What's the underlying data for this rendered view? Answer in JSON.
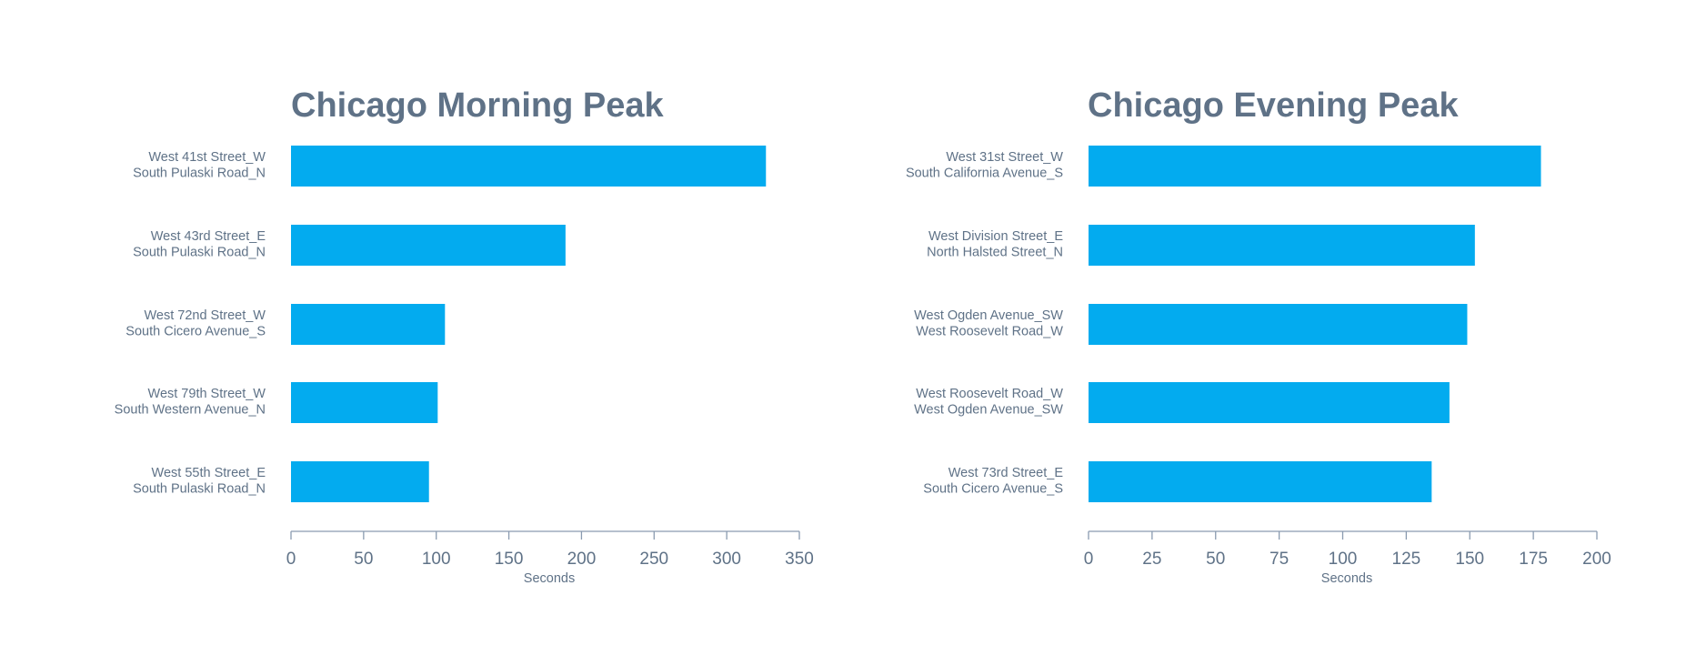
{
  "chart_data": [
    {
      "type": "bar",
      "orientation": "horizontal",
      "title": "Chicago Morning Peak",
      "xlabel": "Seconds",
      "xlim": [
        0,
        350
      ],
      "xticks": [
        0,
        50,
        100,
        150,
        200,
        250,
        300,
        350
      ],
      "bar_color": "#03abef",
      "categories": [
        [
          "West 41st Street_W",
          "South Pulaski Road_N"
        ],
        [
          "West 43rd Street_E",
          "South Pulaski Road_N"
        ],
        [
          "West 72nd Street_W",
          "South Cicero Avenue_S"
        ],
        [
          "West 79th Street_W",
          "South Western Avenue_N"
        ],
        [
          "West 55th Street_E",
          "South Pulaski Road_N"
        ]
      ],
      "values": [
        327,
        189,
        106,
        101,
        95
      ]
    },
    {
      "type": "bar",
      "orientation": "horizontal",
      "title": "Chicago Evening Peak",
      "xlabel": "Seconds",
      "xlim": [
        0,
        200
      ],
      "xticks": [
        0,
        25,
        50,
        75,
        100,
        125,
        150,
        175,
        200
      ],
      "bar_color": "#03abef",
      "categories": [
        [
          "West 31st Street_W",
          "South California Avenue_S"
        ],
        [
          "West Division Street_E",
          "North Halsted Street_N"
        ],
        [
          "West Ogden Avenue_SW",
          "West Roosevelt Road_W"
        ],
        [
          "West Roosevelt Road_W",
          "West Ogden Avenue_SW"
        ],
        [
          "West 73rd Street_E",
          "South Cicero Avenue_S"
        ]
      ],
      "values": [
        178,
        152,
        149,
        142,
        135
      ]
    }
  ]
}
